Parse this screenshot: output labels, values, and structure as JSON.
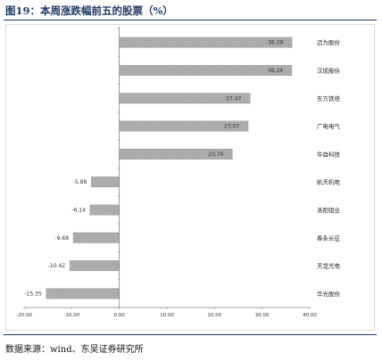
{
  "header": {
    "title": "图19：本周涨跌幅前五的股票（%）"
  },
  "footer": {
    "source": "数据来源：wind、东吴证券研究所"
  },
  "colors": {
    "bar": "#a6a6a6",
    "bar_edge": "#7f7f7f",
    "axis": "#808080",
    "accent": "#1f3864"
  },
  "chart_data": {
    "type": "bar",
    "orientation": "horizontal",
    "categories": [
      "迈为股份",
      "汉缆股份",
      "东方铁塔",
      "广电电气",
      "华自科技",
      "航天机电",
      "洛阳钼业",
      "春永长征",
      "天龙光电",
      "华光股份"
    ],
    "values": [
      36.29,
      36.24,
      27.47,
      27.07,
      23.76,
      -5.88,
      -6.14,
      -9.68,
      -10.42,
      -15.35
    ],
    "value_labels": [
      "36.29",
      "36.24",
      "27.47",
      "27.07",
      "23.76",
      "-5.88",
      "-6.14",
      "-9.68",
      "-10.42",
      "-15.35"
    ],
    "xlim": [
      -20,
      40
    ],
    "xticks": [
      -20,
      -10,
      0,
      10,
      20,
      30,
      40
    ],
    "xtick_labels": [
      "-20.00",
      "-10.00",
      "0.00",
      "10.00",
      "20.00",
      "30.00",
      "40.00"
    ],
    "grid": false,
    "legend": "none"
  }
}
